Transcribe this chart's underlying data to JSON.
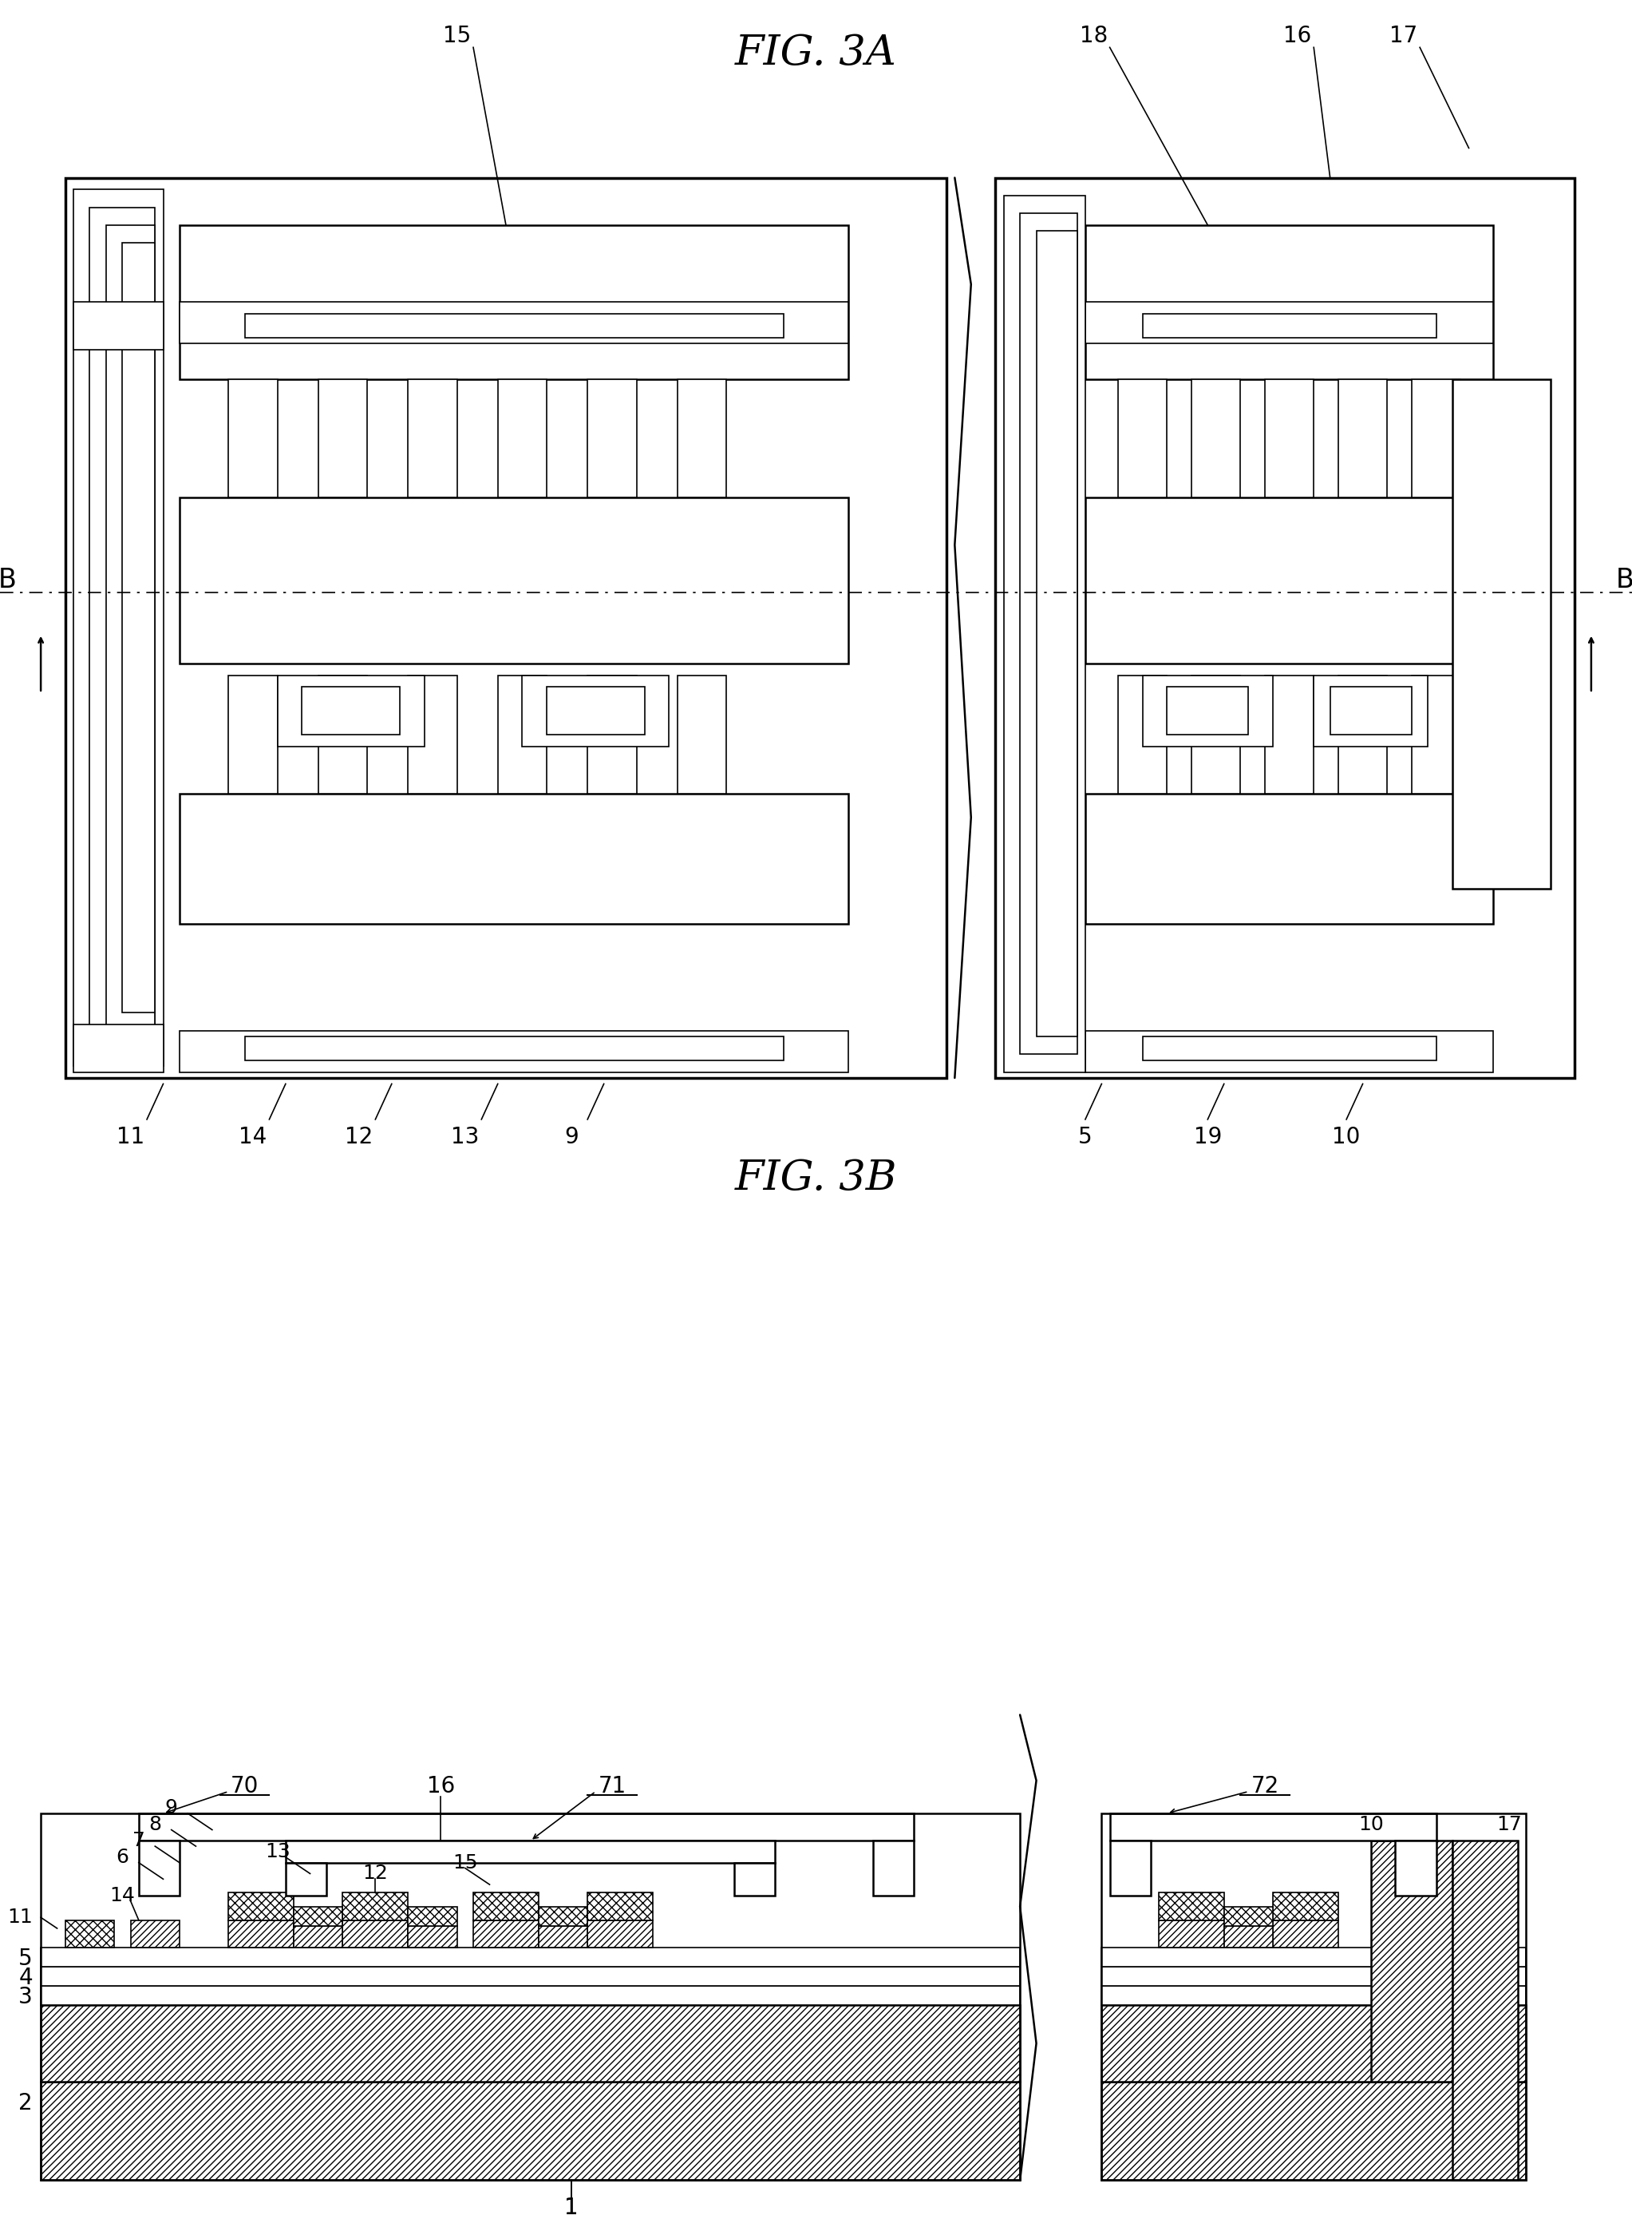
{
  "fig_title_3A": "FIG. 3A",
  "fig_title_3B": "FIG. 3B",
  "bg_color": "#ffffff",
  "font_size_title": 38,
  "font_size_label": 24,
  "font_size_small": 20,
  "fig_width": 20.45,
  "fig_height": 27.99,
  "lw_thin": 1.2,
  "lw_med": 1.8,
  "lw_thick": 2.5
}
